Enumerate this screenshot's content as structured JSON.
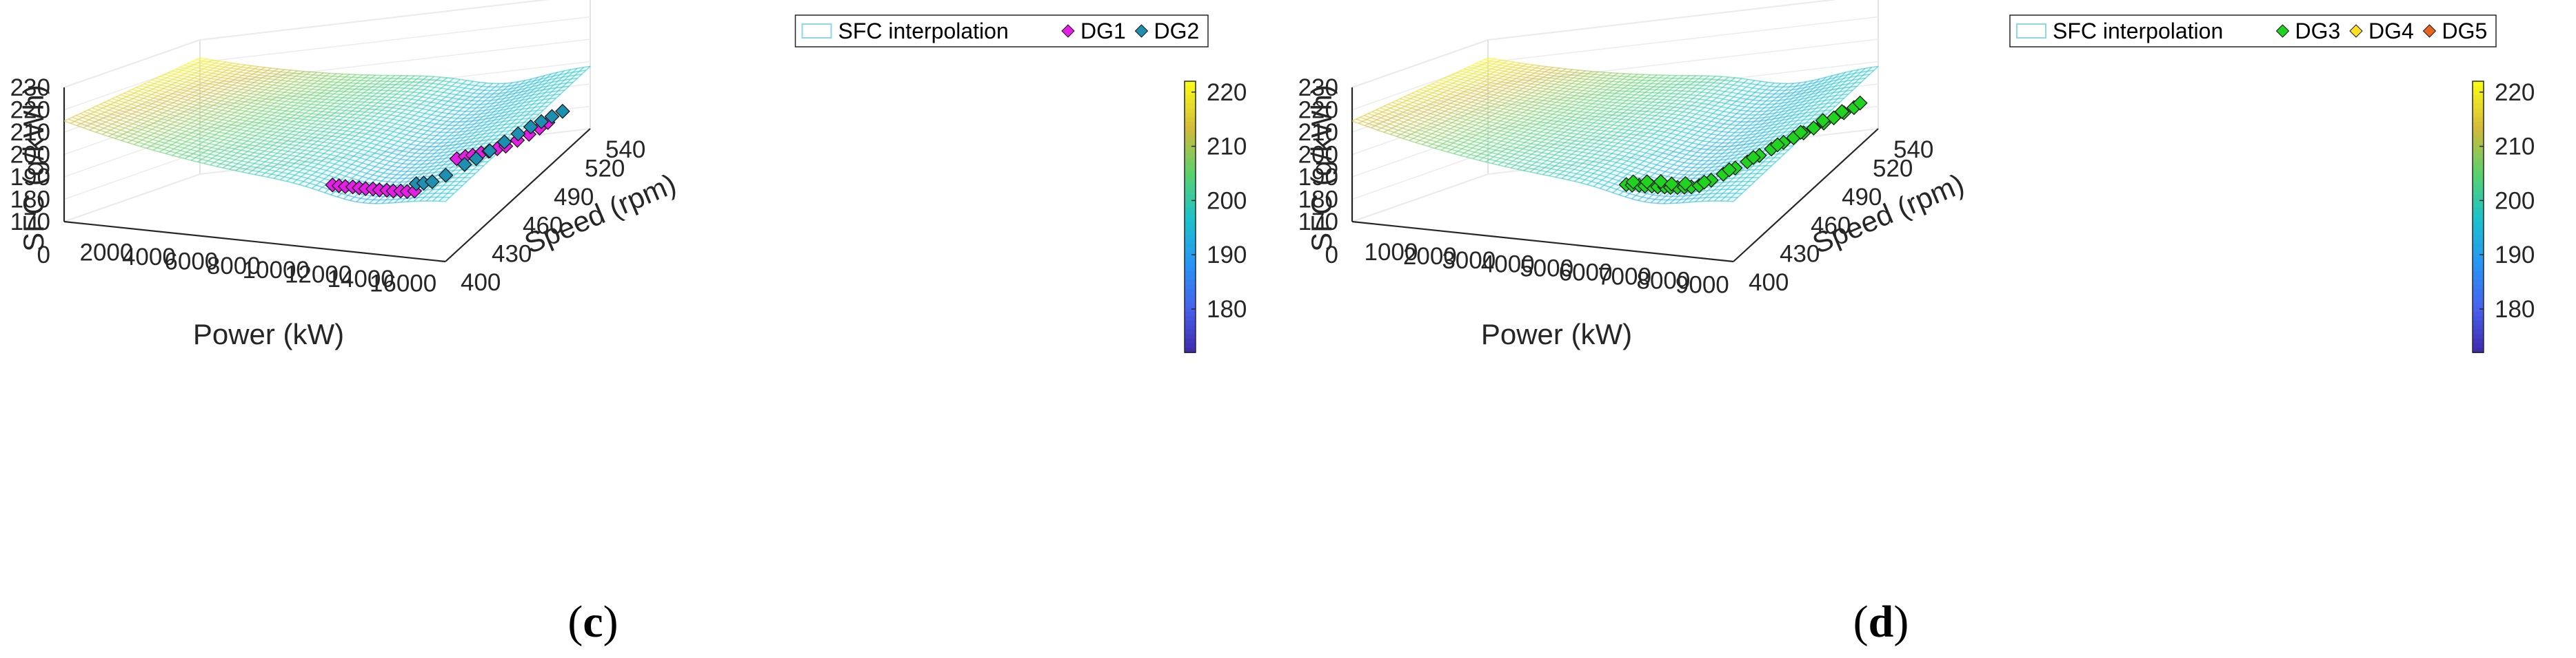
{
  "colors": {
    "colormap": [
      "#3e26a8",
      "#4760ee",
      "#2795f6",
      "#1bc2cc",
      "#59d26d",
      "#d2ba3a",
      "#f9fb15"
    ],
    "wire_alpha": "0.55",
    "dg1": "#e51ee5",
    "dg2": "#1d8fb0",
    "dg3": "#1fd31f",
    "dg4": "#ffe020",
    "dg5": "#e8641c",
    "legend_interp": "#8fd6e6"
  },
  "chart_data": [
    {
      "type": "surface3d",
      "panel": "c",
      "caption": "c",
      "zlabel": "SFC (g/kWh)",
      "xlabel": "Power (kW)",
      "ylabel": "Speed (rpm)",
      "z_ticks": [
        "230",
        "220",
        "210",
        "200",
        "190",
        "180",
        "170",
        "0"
      ],
      "x_ticks": [
        "2000",
        "4000",
        "6000",
        "8000",
        "10000",
        "12000",
        "14000",
        "16000"
      ],
      "y_ticks": [
        "400",
        "430",
        "460",
        "490",
        "520",
        "540"
      ],
      "colorbar_ticks": [
        "220",
        "210",
        "200",
        "190",
        "180"
      ],
      "colorbar_range": [
        172,
        222
      ],
      "xlim": [
        0,
        18000
      ],
      "ylim": [
        400,
        540
      ],
      "zlim": [
        170,
        230
      ],
      "legend": [
        {
          "label": "SFC interpolation",
          "marker": "patch",
          "color_key": "legend_interp"
        },
        {
          "label": "DG1",
          "marker": "diamond",
          "color_key": "dg1"
        },
        {
          "label": "DG2",
          "marker": "diamond",
          "color_key": "dg2"
        }
      ],
      "series": [
        {
          "name": "DG1",
          "color_key": "dg1",
          "points": [
            [
              10200,
              452,
              180.6
            ],
            [
              10500,
              452,
              180.3
            ],
            [
              10800,
              452,
              180
            ],
            [
              11100,
              453,
              179.6
            ],
            [
              11400,
              453,
              179.2
            ],
            [
              11700,
              453,
              178.9
            ],
            [
              12000,
              454,
              178.5
            ],
            [
              12300,
              454,
              178.1
            ],
            [
              12600,
              455,
              177.7
            ],
            [
              12900,
              455,
              177.4
            ],
            [
              13200,
              456,
              177.1
            ],
            [
              13500,
              456,
              176.9
            ],
            [
              13800,
              457,
              176.8
            ],
            [
              14200,
              490,
              179.2
            ],
            [
              14500,
              492,
              179.3
            ],
            [
              14800,
              493,
              179.4
            ],
            [
              15100,
              495,
              179.6
            ],
            [
              15400,
              496,
              179.8
            ],
            [
              15700,
              498,
              180
            ],
            [
              16000,
              500,
              180.2
            ],
            [
              16300,
              505,
              180.7
            ],
            [
              16600,
              510,
              181.2
            ],
            [
              16850,
              515,
              181.7
            ],
            [
              17000,
              520,
              182.1
            ]
          ]
        },
        {
          "name": "DG2",
          "color_key": "dg2",
          "points": [
            [
              13500,
              465,
              177.2
            ],
            [
              13800,
              466,
              177.1
            ],
            [
              14100,
              468,
              177
            ],
            [
              14400,
              475,
              177.3
            ],
            [
              14800,
              485,
              178.3
            ],
            [
              15100,
              490,
              178.9
            ],
            [
              15400,
              497,
              179.6
            ],
            [
              15700,
              505,
              180.3
            ],
            [
              16000,
              512,
              181
            ],
            [
              16300,
              518,
              181.5
            ],
            [
              16600,
              522,
              182
            ],
            [
              16900,
              526,
              182.4
            ],
            [
              17200,
              530,
              182.8
            ]
          ]
        }
      ]
    },
    {
      "type": "surface3d",
      "panel": "d",
      "caption": "d",
      "zlabel": "SFC (g/kWh)",
      "xlabel": "Power (kW)",
      "ylabel": "Speed (rpm)",
      "z_ticks": [
        "230",
        "220",
        "210",
        "200",
        "190",
        "180",
        "170",
        "0"
      ],
      "x_ticks": [
        "1000",
        "2000",
        "3000",
        "4000",
        "5000",
        "6000",
        "7000",
        "8000",
        "9000"
      ],
      "y_ticks": [
        "400",
        "430",
        "460",
        "490",
        "520",
        "540"
      ],
      "colorbar_ticks": [
        "220",
        "210",
        "200",
        "190",
        "180"
      ],
      "colorbar_range": [
        172,
        222
      ],
      "xlim": [
        0,
        9800
      ],
      "ylim": [
        400,
        540
      ],
      "zlim": [
        170,
        230
      ],
      "legend": [
        {
          "label": "SFC interpolation",
          "marker": "patch",
          "color_key": "legend_interp"
        },
        {
          "label": "DG3",
          "marker": "diamond",
          "color_key": "dg3"
        },
        {
          "label": "DG4",
          "marker": "diamond",
          "color_key": "dg4"
        },
        {
          "label": "DG5",
          "marker": "diamond",
          "color_key": "dg5"
        }
      ],
      "series": [
        {
          "name": "DG3",
          "color_key": "dg3",
          "points": [
            [
              5700,
              452,
              180.8
            ],
            [
              5850,
              452,
              180.6
            ],
            [
              6000,
              453,
              180.3
            ],
            [
              6150,
              453,
              180
            ],
            [
              6300,
              454,
              179.7
            ],
            [
              6450,
              454,
              179.4
            ],
            [
              6600,
              455,
              179.1
            ],
            [
              6750,
              455,
              178.9
            ],
            [
              6900,
              456,
              178.6
            ],
            [
              7050,
              457,
              178.4
            ],
            [
              7200,
              458,
              178.2
            ],
            [
              7350,
              460,
              178.1
            ],
            [
              7500,
              466,
              178.4
            ],
            [
              7650,
              472,
              178.9
            ],
            [
              7800,
              478,
              179.4
            ],
            [
              7950,
              484,
              179.9
            ],
            [
              8100,
              490,
              180.4
            ],
            [
              8250,
              496,
              180.9
            ],
            [
              8400,
              502,
              181.4
            ],
            [
              8550,
              506,
              181.8
            ],
            [
              8700,
              510,
              182.2
            ],
            [
              8850,
              514,
              182.6
            ],
            [
              9000,
              518,
              183
            ],
            [
              9150,
              522,
              183.5
            ],
            [
              9300,
              526,
              183.9
            ],
            [
              9450,
              530,
              184.3
            ],
            [
              5800,
              455,
              181.1
            ],
            [
              6100,
              457,
              180.6
            ],
            [
              6400,
              459,
              180.1
            ],
            [
              6700,
              458,
              179.4
            ],
            [
              7000,
              460,
              179
            ],
            [
              7400,
              463,
              178.6
            ],
            [
              7700,
              476,
              179.4
            ],
            [
              8000,
              488,
              180.3
            ],
            [
              8300,
              500,
              181.2
            ],
            [
              8600,
              511,
              182.2
            ],
            [
              8900,
              521,
              183.1
            ],
            [
              9200,
              528,
              183.8
            ],
            [
              9500,
              534,
              184.6
            ]
          ]
        },
        {
          "name": "DG4",
          "color_key": "dg4",
          "points": []
        },
        {
          "name": "DG5",
          "color_key": "dg5",
          "points": []
        }
      ]
    }
  ]
}
